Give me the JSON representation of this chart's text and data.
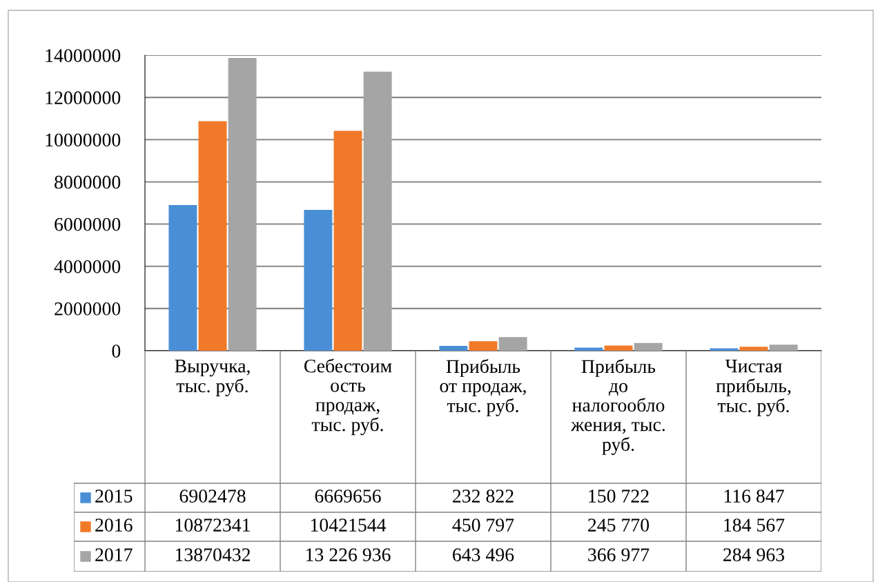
{
  "chart_data": {
    "type": "bar",
    "categories": [
      "Выручка,\nтыс. руб.",
      "Себестоим\nость\nпродаж,\nтыс. руб.",
      "Прибыль\nот продаж,\nтыс. руб.",
      "Прибыль\nдо\nналогообло\nжения, тыс.\nруб.",
      "Чистая\nприбыль,\nтыс. руб."
    ],
    "series": [
      {
        "name": "2015",
        "color": "#4a8fd6",
        "values": [
          6902478,
          6669656,
          232822,
          150722,
          116847
        ],
        "value_labels": [
          "6902478",
          "6669656",
          "232 822",
          "150 722",
          "116 847"
        ]
      },
      {
        "name": "2016",
        "color": "#f07a2a",
        "values": [
          10872341,
          10421544,
          450797,
          245770,
          184567
        ],
        "value_labels": [
          "10872341",
          "10421544",
          "450 797",
          "245 770",
          "184 567"
        ]
      },
      {
        "name": "2017",
        "color": "#a5a5a5",
        "values": [
          13870432,
          13226936,
          643496,
          366977,
          284963
        ],
        "value_labels": [
          "13870432",
          "13 226 936",
          "643 496",
          "366 977",
          "284 963"
        ]
      }
    ],
    "ylim": [
      0,
      14000000
    ],
    "yticks": [
      0,
      2000000,
      4000000,
      6000000,
      8000000,
      10000000,
      12000000,
      14000000
    ],
    "grid": "y",
    "legend": "bottom"
  }
}
